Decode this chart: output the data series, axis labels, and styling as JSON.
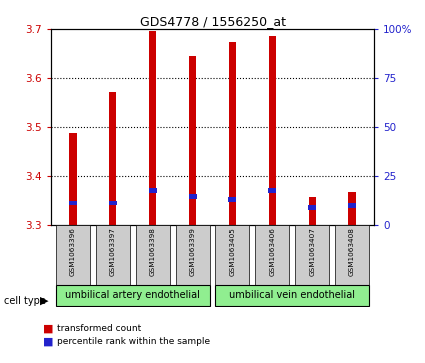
{
  "title": "GDS4778 / 1556250_at",
  "samples": [
    "GSM1063396",
    "GSM1063397",
    "GSM1063398",
    "GSM1063399",
    "GSM1063405",
    "GSM1063406",
    "GSM1063407",
    "GSM1063408"
  ],
  "red_values": [
    3.487,
    3.572,
    3.695,
    3.645,
    3.673,
    3.686,
    3.358,
    3.368
  ],
  "blue_values": [
    3.345,
    3.345,
    3.37,
    3.358,
    3.352,
    3.37,
    3.335,
    3.34
  ],
  "baseline": 3.3,
  "ylim_left": [
    3.3,
    3.7
  ],
  "ylim_right": [
    0,
    100
  ],
  "yticks_left": [
    3.3,
    3.4,
    3.5,
    3.6,
    3.7
  ],
  "yticks_right": [
    0,
    25,
    50,
    75,
    100
  ],
  "ytick_labels_right": [
    "0",
    "25",
    "50",
    "75",
    "100%"
  ],
  "group1_label": "umbilical artery endothelial",
  "group2_label": "umbilical vein endothelial",
  "group_color": "#90EE90",
  "legend_red": "transformed count",
  "legend_blue": "percentile rank within the sample",
  "bar_width": 0.18,
  "red_color": "#CC0000",
  "blue_color": "#2222CC",
  "grid_color": "black",
  "axis_left_color": "#CC0000",
  "axis_right_color": "#2222CC",
  "bg_xticklabels": "#CCCCCC"
}
